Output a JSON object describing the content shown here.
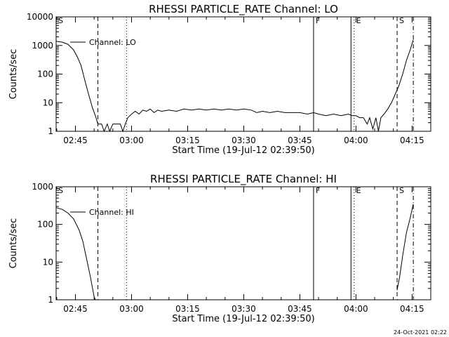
{
  "footer": {
    "timestamp": "24-Oct-2021 02:22"
  },
  "chart_data": [
    {
      "type": "line",
      "title": "RHESSI PARTICLE_RATE Channel: LO",
      "xlabel": "Start Time (19-Jul-12 02:39:50)",
      "ylabel": "Counts/sec",
      "yscale": "log",
      "xlim": [
        "02:39:50",
        "04:20:00"
      ],
      "ylim": [
        1,
        10000
      ],
      "x_ticks": [
        "02:45",
        "03:00",
        "03:15",
        "03:30",
        "03:45",
        "04:00",
        "04:15"
      ],
      "y_ticks": [
        "1",
        "10",
        "100",
        "1000",
        "10000"
      ],
      "legend": {
        "label": "Channel: LO",
        "position": "top-left"
      },
      "markers": [
        {
          "label": "S",
          "time": "02:39:50",
          "style": "none"
        },
        {
          "label": "",
          "time": "02:51:00",
          "style": "dashed"
        },
        {
          "label": "",
          "time": "02:58:40",
          "style": "dotted"
        },
        {
          "label": "F",
          "time": "03:48:40",
          "style": "solid"
        },
        {
          "label": "",
          "time": "03:58:40",
          "style": "solid"
        },
        {
          "label": "E",
          "time": "03:59:30",
          "style": "dotted"
        },
        {
          "label": "S",
          "time": "04:11:00",
          "style": "dashed"
        },
        {
          "label": "",
          "time": "04:15:20",
          "style": "dashdot"
        }
      ],
      "series": [
        {
          "name": "Channel: LO",
          "points": [
            [
              "02:39:50",
              1400
            ],
            [
              "02:41:30",
              1300
            ],
            [
              "02:43:00",
              1100
            ],
            [
              "02:44:30",
              700
            ],
            [
              "02:45:30",
              400
            ],
            [
              "02:46:30",
              200
            ],
            [
              "02:47:30",
              60
            ],
            [
              "02:48:30",
              20
            ],
            [
              "02:49:30",
              7
            ],
            [
              "02:50:30",
              3
            ],
            [
              "02:51:00",
              1.8
            ],
            [
              "02:52:00",
              1.8
            ],
            [
              "02:52:40",
              1
            ],
            [
              "02:53:30",
              1.8
            ],
            [
              "02:54:10",
              1
            ],
            [
              "02:55:00",
              1.8
            ],
            [
              "02:56:00",
              1.8
            ],
            [
              "02:57:00",
              1.8
            ],
            [
              "02:57:40",
              1
            ],
            [
              "02:58:20",
              1.8
            ],
            [
              "02:59:00",
              3
            ],
            [
              "03:00:00",
              4
            ],
            [
              "03:01:00",
              5
            ],
            [
              "03:02:00",
              4
            ],
            [
              "03:03:00",
              5.5
            ],
            [
              "03:04:00",
              5
            ],
            [
              "03:05:00",
              6
            ],
            [
              "03:06:00",
              4.5
            ],
            [
              "03:07:00",
              5.5
            ],
            [
              "03:08:00",
              5
            ],
            [
              "03:10:00",
              5.5
            ],
            [
              "03:12:00",
              5
            ],
            [
              "03:14:00",
              6
            ],
            [
              "03:16:00",
              5.5
            ],
            [
              "03:18:00",
              6
            ],
            [
              "03:20:00",
              5.5
            ],
            [
              "03:22:00",
              6
            ],
            [
              "03:24:00",
              5.5
            ],
            [
              "03:26:00",
              6
            ],
            [
              "03:28:00",
              5.5
            ],
            [
              "03:30:00",
              6
            ],
            [
              "03:32:00",
              5.5
            ],
            [
              "03:33:30",
              4.5
            ],
            [
              "03:35:00",
              5
            ],
            [
              "03:37:00",
              4.5
            ],
            [
              "03:39:00",
              5
            ],
            [
              "03:41:00",
              4.5
            ],
            [
              "03:43:00",
              4.5
            ],
            [
              "03:45:00",
              4.5
            ],
            [
              "03:47:00",
              4
            ],
            [
              "03:48:40",
              4.5
            ],
            [
              "03:50:00",
              4
            ],
            [
              "03:52:00",
              3.5
            ],
            [
              "03:54:00",
              4
            ],
            [
              "03:56:00",
              3.5
            ],
            [
              "03:58:00",
              4
            ],
            [
              "03:59:00",
              3.5
            ],
            [
              "04:00:00",
              3.5
            ],
            [
              "04:01:00",
              3
            ],
            [
              "04:02:00",
              3
            ],
            [
              "04:03:00",
              1.8
            ],
            [
              "04:03:40",
              3
            ],
            [
              "04:04:30",
              1.2
            ],
            [
              "04:05:20",
              3
            ],
            [
              "04:06:00",
              1
            ],
            [
              "04:06:40",
              3
            ],
            [
              "04:07:30",
              4
            ],
            [
              "04:08:30",
              6
            ],
            [
              "04:09:30",
              10
            ],
            [
              "04:10:30",
              20
            ],
            [
              "04:11:30",
              40
            ],
            [
              "04:12:30",
              100
            ],
            [
              "04:13:30",
              300
            ],
            [
              "04:14:30",
              700
            ],
            [
              "04:15:20",
              1600
            ]
          ]
        }
      ]
    },
    {
      "type": "line",
      "title": "RHESSI PARTICLE_RATE Channel: HI",
      "xlabel": "Start Time (19-Jul-12 02:39:50)",
      "ylabel": "Counts/sec",
      "yscale": "log",
      "xlim": [
        "02:39:50",
        "04:20:00"
      ],
      "ylim": [
        1,
        1000
      ],
      "x_ticks": [
        "02:45",
        "03:00",
        "03:15",
        "03:30",
        "03:45",
        "04:00",
        "04:15"
      ],
      "y_ticks": [
        "1",
        "10",
        "100",
        "1000"
      ],
      "legend": {
        "label": "Channel: HI",
        "position": "top-left"
      },
      "markers": [
        {
          "label": "S",
          "time": "02:39:50",
          "style": "none"
        },
        {
          "label": "",
          "time": "02:51:00",
          "style": "dashed"
        },
        {
          "label": "",
          "time": "02:58:40",
          "style": "dotted"
        },
        {
          "label": "F",
          "time": "03:48:40",
          "style": "solid"
        },
        {
          "label": "",
          "time": "03:58:40",
          "style": "solid"
        },
        {
          "label": "E",
          "time": "03:59:30",
          "style": "dotted"
        },
        {
          "label": "S",
          "time": "04:11:00",
          "style": "dashed"
        },
        {
          "label": "",
          "time": "04:15:20",
          "style": "dashdot"
        }
      ],
      "series": [
        {
          "name": "Channel: HI",
          "points": [
            [
              "02:39:50",
              280
            ],
            [
              "02:41:30",
              250
            ],
            [
              "02:43:00",
              200
            ],
            [
              "02:44:30",
              140
            ],
            [
              "02:46:00",
              70
            ],
            [
              "02:47:00",
              35
            ],
            [
              "02:48:00",
              12
            ],
            [
              "02:49:00",
              4
            ],
            [
              "02:50:00",
              1.2
            ],
            [
              "02:50:20",
              1
            ]
          ]
        },
        {
          "name": "Channel: HI",
          "points": [
            [
              "04:11:00",
              1.8
            ],
            [
              "04:11:40",
              4
            ],
            [
              "04:12:30",
              15
            ],
            [
              "04:13:30",
              60
            ],
            [
              "04:14:30",
              150
            ],
            [
              "04:15:20",
              350
            ]
          ]
        }
      ]
    }
  ]
}
